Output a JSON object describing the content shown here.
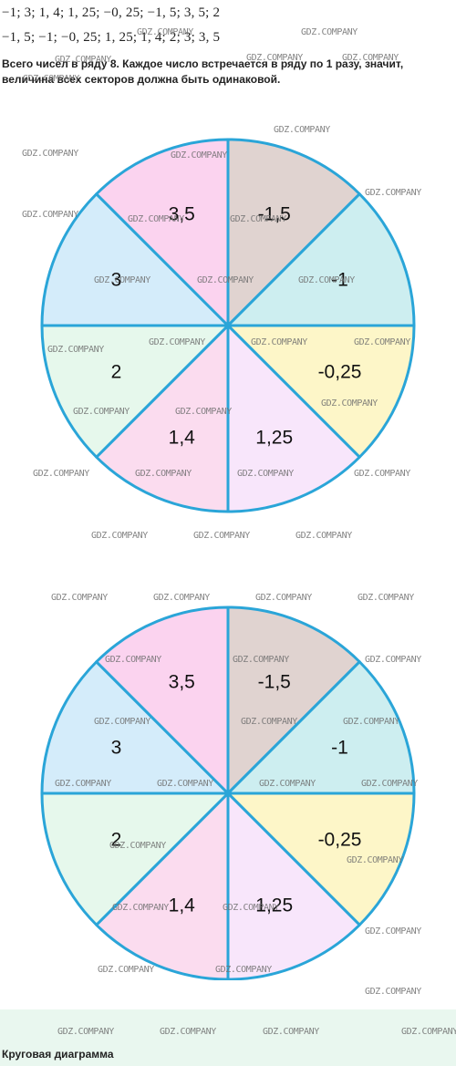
{
  "text": {
    "seq_original": "−1;  3;  1, 4;  1, 25;  −0, 25;  −1, 5;  3, 5;  2",
    "seq_sorted": "−1, 5;  −1;  −0, 25;  1, 25;  1, 4;  2;  3;  3, 5",
    "explanation": "Всего чисел в ряду 8. Каждое число встречается в ряду по 1 разу, значит, величина всех секторов должна быть одинаковой.",
    "caption": "Круговая диаграмма"
  },
  "chart_data": [
    {
      "type": "pie",
      "categories": [
        "-1,5",
        "-1",
        "-0,25",
        "1,25",
        "1,4",
        "2",
        "3",
        "3,5"
      ],
      "values": [
        1,
        1,
        1,
        1,
        1,
        1,
        1,
        1
      ],
      "colors": [
        "#e0d3d0",
        "#cdeef0",
        "#fdf6c8",
        "#f8e6fb",
        "#fbdcef",
        "#e6f8ec",
        "#d4ecfa",
        "#fbd3ef"
      ],
      "slice_start": "12 o'clock, clockwise",
      "border_color": "#2aa5d8"
    },
    {
      "type": "pie",
      "categories": [
        "-1,5",
        "-1",
        "-0,25",
        "1,25",
        "1,4",
        "2",
        "3",
        "3,5"
      ],
      "values": [
        1,
        1,
        1,
        1,
        1,
        1,
        1,
        1
      ],
      "colors": [
        "#e0d3d0",
        "#cdeef0",
        "#fdf6c8",
        "#f8e6fb",
        "#fbdcef",
        "#e6f8ec",
        "#d4ecfa",
        "#fbd3ef"
      ],
      "slice_start": "12 o'clock, clockwise",
      "border_color": "#2aa5d8"
    }
  ],
  "watermark": {
    "text": "GDZ.COMPANY",
    "count": 56
  }
}
